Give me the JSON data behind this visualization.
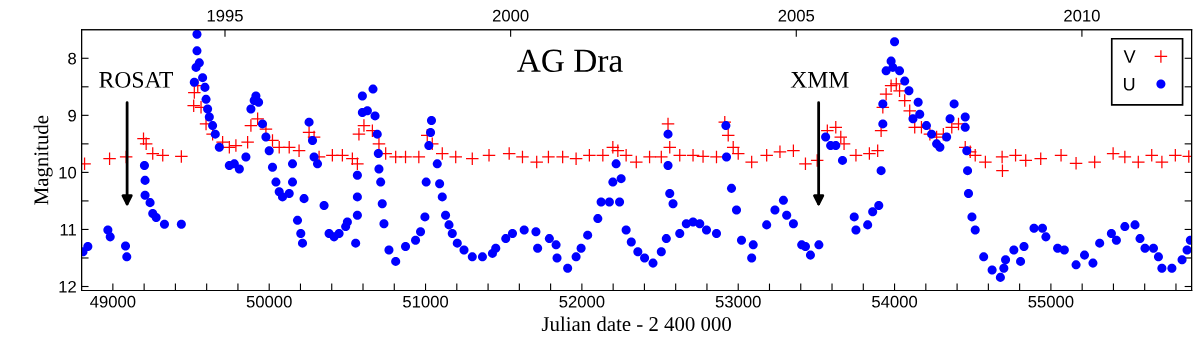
{
  "chart_data": {
    "type": "scatter",
    "title": "AG Dra",
    "xlabel": "Julian date - 2 400 000",
    "ylabel": "Magnitude",
    "x2label": null,
    "xlim": [
      48800,
      55900
    ],
    "ylim": [
      12.07,
      7.5
    ],
    "xticks": [
      {
        "value": 49000,
        "label": "49000"
      },
      {
        "value": 49200,
        "label": null
      },
      {
        "value": 49400,
        "label": null
      },
      {
        "value": 49600,
        "label": null
      },
      {
        "value": 49800,
        "label": null
      },
      {
        "value": 50000,
        "label": "50000"
      },
      {
        "value": 50200,
        "label": null
      },
      {
        "value": 50400,
        "label": null
      },
      {
        "value": 50600,
        "label": null
      },
      {
        "value": 50800,
        "label": null
      },
      {
        "value": 51000,
        "label": "51000"
      },
      {
        "value": 51200,
        "label": null
      },
      {
        "value": 51400,
        "label": null
      },
      {
        "value": 51600,
        "label": null
      },
      {
        "value": 51800,
        "label": null
      },
      {
        "value": 52000,
        "label": "52000"
      },
      {
        "value": 52200,
        "label": null
      },
      {
        "value": 52400,
        "label": null
      },
      {
        "value": 52600,
        "label": null
      },
      {
        "value": 52800,
        "label": null
      },
      {
        "value": 53000,
        "label": "53000"
      },
      {
        "value": 53200,
        "label": null
      },
      {
        "value": 53400,
        "label": null
      },
      {
        "value": 53600,
        "label": null
      },
      {
        "value": 53800,
        "label": null
      },
      {
        "value": 54000,
        "label": "54000"
      },
      {
        "value": 54200,
        "label": null
      },
      {
        "value": 54400,
        "label": null
      },
      {
        "value": 54600,
        "label": null
      },
      {
        "value": 54800,
        "label": null
      },
      {
        "value": 55000,
        "label": "55000"
      },
      {
        "value": 55200,
        "label": null
      },
      {
        "value": 55400,
        "label": null
      },
      {
        "value": 55600,
        "label": null
      },
      {
        "value": 55800,
        "label": null
      }
    ],
    "yticks": [
      8,
      {
        "value": 8.5,
        "label": null
      },
      9,
      {
        "value": 9.5,
        "label": null
      },
      10,
      {
        "value": 10.5,
        "label": null
      },
      11,
      {
        "value": 11.5,
        "label": null
      },
      12
    ],
    "x2lim": [
      1992.49,
      2011.92
    ],
    "x2ticks": [
      1995,
      2000,
      2005,
      2010
    ],
    "legend": "top right",
    "grid": false,
    "annotations": [
      "ROSAT",
      "XMM"
    ],
    "series": [
      {
        "name": "V",
        "color": "#ff0000",
        "marker": "cross",
        "x": [
          48819,
          48979,
          49085,
          49196,
          49213,
          49255,
          49319,
          49438,
          49521,
          49517,
          49543,
          49564,
          49596,
          49638,
          49702,
          49745,
          49787,
          49862,
          49883,
          49926,
          49979,
          50021,
          50064,
          50128,
          50191,
          50255,
          50287,
          50319,
          50404,
          50468,
          50532,
          50564,
          50574,
          50606,
          50660,
          50702,
          50745,
          50809,
          50872,
          50957,
          51011,
          51043,
          51107,
          51193,
          51299,
          51406,
          51535,
          51620,
          51711,
          51786,
          51877,
          51963,
          52048,
          52134,
          52198,
          52230,
          52283,
          52348,
          52433,
          52508,
          52551,
          52562,
          52626,
          52711,
          52775,
          52861,
          52914,
          52936,
          52968,
          53000,
          53086,
          53182,
          53267,
          53353,
          53430,
          53505,
          53570,
          53624,
          53656,
          53677,
          53753,
          53839,
          53892,
          53914,
          53925,
          53946,
          53978,
          54011,
          54032,
          54065,
          54097,
          54129,
          54172,
          54226,
          54269,
          54312,
          54366,
          54409,
          54452,
          54484,
          54516,
          54581,
          54688,
          54690,
          54774,
          54839,
          54935,
          55065,
          55161,
          55280,
          55398,
          55473,
          55559,
          55645,
          55710,
          55796,
          55882
        ],
        "values": [
          9.85,
          9.76,
          9.73,
          9.41,
          9.5,
          9.67,
          9.7,
          9.72,
          8.6,
          8.83,
          8.48,
          8.86,
          9.15,
          9.33,
          9.47,
          9.56,
          9.53,
          9.47,
          9.18,
          9.06,
          9.24,
          9.44,
          9.56,
          9.56,
          9.62,
          9.3,
          9.38,
          9.73,
          9.7,
          9.7,
          9.76,
          9.85,
          9.33,
          9.18,
          9.27,
          9.5,
          9.67,
          9.73,
          9.73,
          9.73,
          9.35,
          9.5,
          9.67,
          9.73,
          9.76,
          9.7,
          9.67,
          9.73,
          9.82,
          9.73,
          9.73,
          9.76,
          9.7,
          9.7,
          9.56,
          9.62,
          9.7,
          9.82,
          9.73,
          9.73,
          9.15,
          9.56,
          9.7,
          9.7,
          9.72,
          9.73,
          9.12,
          9.35,
          9.56,
          9.67,
          9.82,
          9.7,
          9.64,
          9.62,
          9.85,
          9.79,
          9.27,
          9.21,
          9.38,
          9.5,
          9.7,
          9.67,
          9.62,
          9.27,
          8.86,
          8.63,
          8.48,
          8.45,
          8.57,
          8.74,
          8.92,
          9.21,
          9.21,
          9.33,
          9.38,
          9.33,
          9.21,
          9.15,
          9.56,
          9.64,
          9.7,
          9.82,
          9.73,
          9.97,
          9.7,
          9.79,
          9.76,
          9.7,
          9.84,
          9.82,
          9.67,
          9.73,
          9.82,
          9.7,
          9.82,
          9.7,
          9.72
        ]
      },
      {
        "name": "U",
        "color": "#0000ff",
        "marker": "circle",
        "x": [
          48809,
          48840,
          48968,
          48983,
          49081,
          49089,
          49202,
          49206,
          49206,
          49238,
          49255,
          49277,
          49330,
          49438,
          49538,
          49538,
          49532,
          49521,
          49553,
          49574,
          49589,
          49596,
          49606,
          49617,
          49638,
          49655,
          49681,
          49745,
          49777,
          49809,
          49851,
          49883,
          49904,
          49915,
          49932,
          49957,
          49979,
          50000,
          50021,
          50043,
          50064,
          50085,
          50128,
          50149,
          50149,
          50181,
          50202,
          50213,
          50223,
          50255,
          50277,
          50287,
          50309,
          50351,
          50383,
          50415,
          50447,
          50489,
          50500,
          50553,
          50564,
          50564,
          50564,
          50596,
          50596,
          50628,
          50664,
          50677,
          50691,
          50698,
          50702,
          50713,
          50723,
          50734,
          50766,
          50809,
          50872,
          50936,
          50968,
          50996,
          51004,
          51021,
          51038,
          51032,
          51075,
          51090,
          51107,
          51128,
          51150,
          51171,
          51203,
          51246,
          51299,
          51364,
          51428,
          51449,
          51513,
          51556,
          51631,
          51706,
          51717,
          51792,
          51835,
          51841,
          51909,
          51963,
          51995,
          52037,
          52102,
          52123,
          52176,
          52198,
          52219,
          52251,
          52241,
          52283,
          52316,
          52358,
          52401,
          52455,
          52508,
          52540,
          52551,
          52551,
          52562,
          52583,
          52626,
          52668,
          52711,
          52754,
          52797,
          52861,
          52921,
          52925,
          52957,
          52989,
          53021,
          53086,
          53096,
          53182,
          53235,
          53289,
          53310,
          53353,
          53406,
          53430,
          53462,
          53516,
          53559,
          53591,
          53624,
          53667,
          53742,
          53753,
          53828,
          53860,
          53899,
          53914,
          53925,
          53925,
          53946,
          53978,
          54000,
          53989,
          54032,
          54065,
          54092,
          54118,
          54151,
          54161,
          54204,
          54237,
          54269,
          54290,
          54333,
          54355,
          54381,
          54452,
          54452,
          54462,
          54467,
          54473,
          54495,
          54516,
          54570,
          54624,
          54677,
          54699,
          54710,
          54763,
          54806,
          54828,
          54892,
          54946,
          54968,
          55043,
          55086,
          55161,
          55215,
          55269,
          55312,
          55387,
          55419,
          55473,
          55538,
          55570,
          55602,
          55656,
          55688,
          55710,
          55774,
          55839,
          55871,
          55892
        ],
        "values": [
          11.39,
          11.3,
          11.01,
          11.13,
          11.29,
          11.48,
          9.88,
          10.14,
          10.4,
          10.53,
          10.72,
          10.79,
          10.91,
          10.91,
          7.58,
          7.87,
          8.16,
          8.42,
          8.08,
          8.34,
          8.51,
          8.72,
          8.89,
          9.03,
          9.18,
          9.33,
          9.56,
          9.88,
          9.85,
          9.94,
          9.73,
          8.89,
          8.74,
          8.66,
          8.77,
          9.15,
          9.38,
          9.62,
          9.91,
          10.17,
          10.34,
          10.43,
          10.37,
          10.17,
          9.85,
          10.84,
          11.07,
          11.24,
          10.46,
          9.12,
          9.44,
          9.73,
          9.85,
          10.58,
          11.07,
          11.13,
          11.07,
          10.95,
          10.87,
          11.24,
          10.75,
          10.43,
          10.05,
          8.66,
          8.95,
          8.92,
          8.54,
          9.01,
          9.33,
          9.67,
          9.94,
          10.17,
          10.55,
          10.9,
          11.36,
          11.56,
          11.3,
          11.19,
          11.04,
          10.78,
          10.17,
          9.53,
          9.09,
          9.3,
          9.85,
          10.2,
          10.43,
          10.75,
          10.92,
          11.07,
          11.24,
          11.36,
          11.48,
          11.48,
          11.42,
          11.33,
          11.16,
          11.07,
          11.01,
          11.04,
          11.33,
          11.16,
          11.27,
          11.5,
          11.68,
          11.48,
          11.33,
          11.1,
          10.81,
          10.52,
          10.52,
          10.17,
          9.85,
          10.11,
          10.52,
          11.01,
          11.22,
          11.39,
          11.5,
          11.59,
          11.39,
          11.16,
          9.33,
          9.88,
          10.37,
          10.55,
          11.07,
          10.9,
          10.87,
          10.9,
          11.01,
          11.07,
          9.18,
          9.73,
          10.28,
          10.66,
          11.19,
          11.5,
          11.27,
          10.92,
          10.66,
          10.49,
          10.75,
          10.9,
          11.27,
          11.3,
          11.45,
          11.27,
          9.38,
          9.53,
          9.53,
          9.79,
          10.78,
          11.01,
          10.92,
          10.69,
          10.58,
          9.97,
          9.15,
          8.8,
          8.22,
          8.05,
          7.71,
          8.16,
          8.22,
          8.4,
          8.57,
          9.06,
          8.77,
          8.98,
          9.18,
          9.33,
          9.5,
          9.56,
          9.38,
          9.06,
          8.8,
          9.03,
          9.21,
          9.62,
          9.97,
          10.37,
          10.78,
          11.01,
          11.48,
          11.71,
          11.84,
          11.68,
          11.53,
          11.36,
          11.56,
          11.3,
          10.98,
          10.98,
          11.13,
          11.33,
          11.36,
          11.62,
          11.45,
          11.59,
          11.24,
          11.07,
          11.19,
          10.95,
          10.92,
          11.16,
          11.33,
          11.33,
          11.48,
          11.68,
          11.68,
          11.53,
          11.36,
          11.19
        ]
      }
    ]
  }
}
